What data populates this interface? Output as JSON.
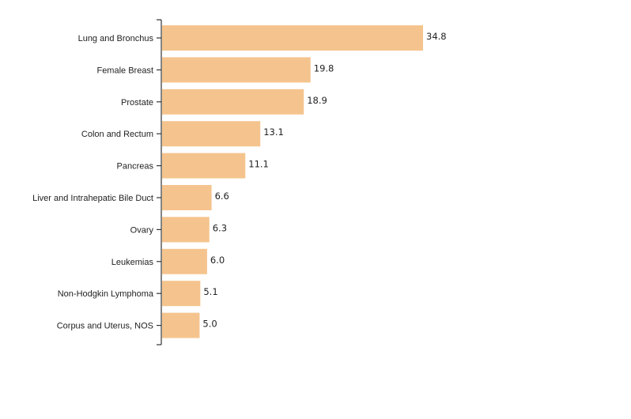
{
  "chart_data": {
    "type": "bar",
    "orientation": "horizontal",
    "categories": [
      "Lung and Bronchus",
      "Female Breast",
      "Prostate",
      "Colon and Rectum",
      "Pancreas",
      "Liver and Intrahepatic Bile Duct",
      "Ovary",
      "Leukemias",
      "Non-Hodgkin Lymphoma",
      "Corpus and Uterus, NOS"
    ],
    "values": [
      34.8,
      19.8,
      18.9,
      13.1,
      11.1,
      6.6,
      6.3,
      6.0,
      5.1,
      5.0
    ],
    "value_labels": [
      "34.8",
      "19.8",
      "18.9",
      "13.1",
      "11.1",
      "6.6",
      "6.3",
      "6.0",
      "5.1",
      "5.0"
    ],
    "bar_color": "#f5c48e",
    "title": "",
    "xlabel": "",
    "ylabel": "",
    "xlim": [
      0,
      34.8
    ],
    "grid": false,
    "legend": "none"
  }
}
